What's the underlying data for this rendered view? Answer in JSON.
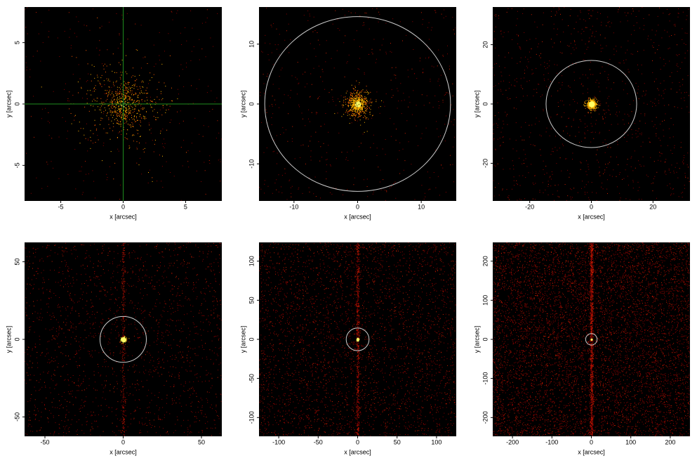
{
  "chart_data": [
    {
      "type": "image",
      "xlabel": "x [arcsec]",
      "ylabel": "y [arcsec]",
      "xlim": [
        -7.9,
        7.9
      ],
      "ylim": [
        -7.9,
        7.9
      ],
      "xticks": [
        -5,
        0,
        5
      ],
      "yticks": [
        -5,
        0,
        5
      ],
      "crosshair": {
        "x": 0,
        "y": 0,
        "color": "#1e8c1e"
      }
    },
    {
      "type": "image",
      "xlabel": "x [arcsec]",
      "ylabel": "y [arcsec]",
      "xlim": [
        -15.5,
        15.5
      ],
      "ylim": [
        -16.2,
        16.2
      ],
      "xticks": [
        -10,
        0,
        10
      ],
      "yticks": [
        -10,
        0,
        10
      ],
      "circle_radius": 14.6,
      "circle_color": "#cccccc"
    },
    {
      "type": "image",
      "xlabel": "x [arcsec]",
      "ylabel": "y [arcsec]",
      "xlim": [
        -32,
        32
      ],
      "ylim": [
        -32.7,
        32.7
      ],
      "xticks": [
        -20,
        0,
        20
      ],
      "yticks": [
        -20,
        0,
        20
      ],
      "circle_radius": 14.7,
      "circle_color": "#cccccc"
    },
    {
      "type": "image",
      "xlabel": "x [arcsec]",
      "ylabel": "y [arcsec]",
      "xlim": [
        -63,
        63
      ],
      "ylim": [
        -62.5,
        62.5
      ],
      "xticks": [
        -50,
        0,
        50
      ],
      "yticks": [
        -50,
        0,
        50
      ],
      "circle_radius": 14.8,
      "circle_color": "#cccccc"
    },
    {
      "type": "image",
      "xlabel": "x [arcsec]",
      "ylabel": "y [arcsec]",
      "xlim": [
        -125,
        125
      ],
      "ylim": [
        -124,
        124
      ],
      "xticks": [
        -100,
        -50,
        0,
        50,
        100
      ],
      "yticks": [
        -100,
        -50,
        0,
        50,
        100
      ],
      "circle_radius": 14.5,
      "circle_color": "#cccccc"
    },
    {
      "type": "image",
      "xlabel": "x [arcsec]",
      "ylabel": "y [arcsec]",
      "xlim": [
        -250,
        250
      ],
      "ylim": [
        -248,
        248
      ],
      "xticks": [
        -200,
        -100,
        0,
        100,
        200
      ],
      "yticks": [
        -200,
        -100,
        0,
        100,
        200
      ],
      "circle_radius": 14.5,
      "circle_color": "#cccccc"
    }
  ]
}
